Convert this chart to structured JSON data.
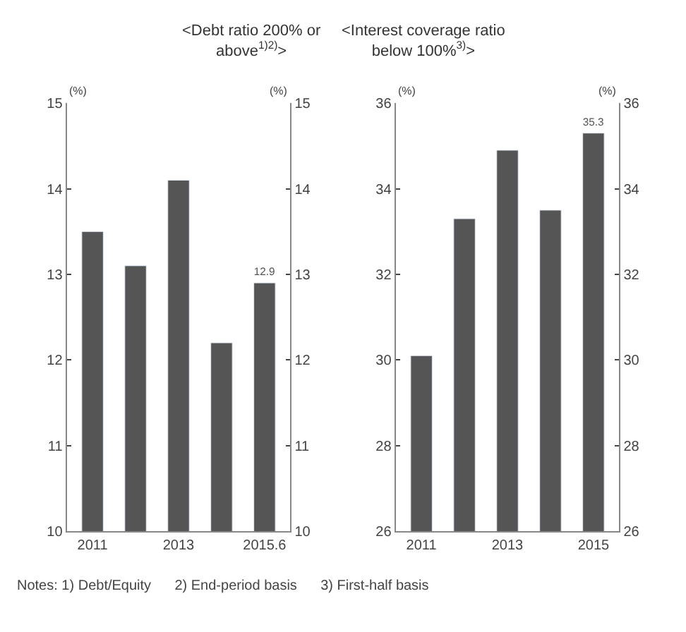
{
  "chart_data": [
    {
      "type": "bar",
      "title": "<Debt ratio 200% or\nabove$^{1)2)}$>",
      "ylabel": "(%)",
      "y2label": "(%)",
      "categories": [
        "2011",
        null,
        "2013",
        null,
        "2015.6"
      ],
      "values": [
        13.5,
        13.1,
        14.1,
        12.2,
        12.9
      ],
      "value_labels": [
        null,
        null,
        null,
        null,
        "12.9"
      ],
      "color": "#555555",
      "ylim": [
        10,
        15
      ],
      "yticks": [
        10,
        11,
        12,
        13,
        14,
        15
      ],
      "y2lim": [
        10,
        15
      ],
      "y2ticks": [
        10,
        11,
        12,
        13,
        14,
        15
      ],
      "grid": false
    },
    {
      "type": "bar",
      "title": "<Interest coverage ratio\nbelow 100%$^{3)}$>",
      "ylabel": "(%)",
      "y2label": "(%)",
      "categories": [
        "2011",
        null,
        "2013",
        null,
        "2015"
      ],
      "values": [
        30.1,
        33.3,
        34.9,
        33.5,
        35.3
      ],
      "value_labels": [
        null,
        null,
        null,
        null,
        "35.3"
      ],
      "color": "#555555",
      "ylim": [
        26,
        36
      ],
      "yticks": [
        26,
        28,
        30,
        32,
        34,
        36
      ],
      "y2lim": [
        26,
        36
      ],
      "y2ticks": [
        26,
        28,
        30,
        32,
        34,
        36
      ],
      "grid": false,
      "annotations": [
        "Notes: 1) Debt/Equity      2) End-period basis      3) First-half basis"
      ]
    }
  ]
}
